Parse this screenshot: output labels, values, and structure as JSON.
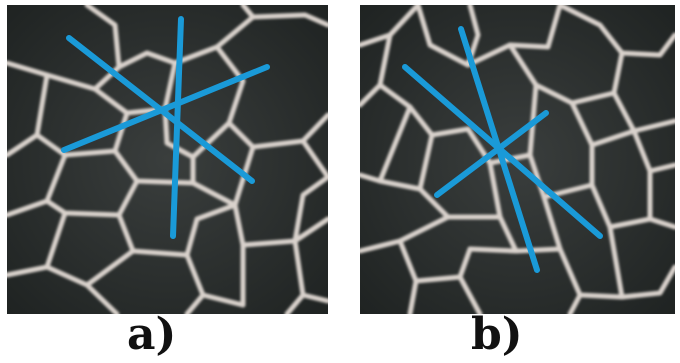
{
  "panels": [
    {
      "id": "a",
      "label": "a)",
      "line_color": "#1a9ad8",
      "cell_wall_color": "#d9d2cc",
      "background_color": "#2a2e2e"
    },
    {
      "id": "b",
      "label": "b)",
      "line_color": "#1a9ad8",
      "cell_wall_color": "#d9d2cc",
      "background_color": "#2a2e2e"
    }
  ]
}
